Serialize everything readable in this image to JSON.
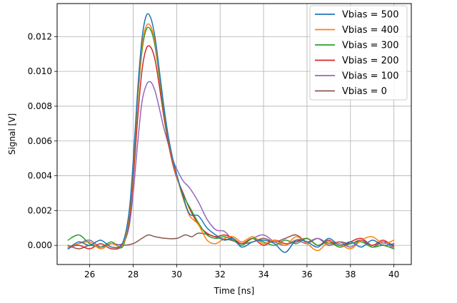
{
  "chart_data": {
    "type": "line",
    "title": "",
    "xlabel": "Time [ns]",
    "ylabel": "Signal [V]",
    "xlim": [
      24.5,
      40.8
    ],
    "ylim": [
      -0.0011,
      0.0139
    ],
    "xticks": [
      26,
      28,
      30,
      32,
      34,
      36,
      38,
      40
    ],
    "xtick_labels": [
      "26",
      "28",
      "30",
      "32",
      "34",
      "36",
      "38",
      "40"
    ],
    "yticks": [
      0.0,
      0.002,
      0.004,
      0.006,
      0.008,
      0.01,
      0.012
    ],
    "ytick_labels": [
      "0.000",
      "0.002",
      "0.004",
      "0.006",
      "0.008",
      "0.010",
      "0.012"
    ],
    "grid": true,
    "legend_position": "top-right",
    "series": [
      {
        "name": "Vbias = 500",
        "color": "#1f77b4",
        "x": [
          25.0,
          25.5,
          26.0,
          26.5,
          27.0,
          27.5,
          27.8,
          28.0,
          28.2,
          28.4,
          28.6,
          28.8,
          29.0,
          29.2,
          29.4,
          29.6,
          29.8,
          30.0,
          30.3,
          30.6,
          31.0,
          31.4,
          31.8,
          32.2,
          32.6,
          33.0,
          33.5,
          34.0,
          34.5,
          35.0,
          35.5,
          36.0,
          36.5,
          37.0,
          37.5,
          38.0,
          38.5,
          39.0,
          39.5,
          40.0
        ],
        "y": [
          -0.0002,
          0.0002,
          0.0,
          0.0003,
          -0.0001,
          0.0001,
          0.0018,
          0.0048,
          0.0088,
          0.0118,
          0.0132,
          0.0131,
          0.012,
          0.0101,
          0.0081,
          0.0064,
          0.0051,
          0.0041,
          0.0028,
          0.0018,
          0.0017,
          0.001,
          0.0006,
          0.0003,
          0.0004,
          -0.0001,
          0.0002,
          0.0003,
          0.0001,
          -0.0004,
          0.0003,
          0.0002,
          -0.0001,
          0.0004,
          0.0,
          0.0002,
          -0.0001,
          0.0003,
          0.0,
          0.0001
        ]
      },
      {
        "name": "Vbias = 400",
        "color": "#ff7f0e",
        "x": [
          25.0,
          25.5,
          26.0,
          26.5,
          27.0,
          27.5,
          27.8,
          28.0,
          28.2,
          28.4,
          28.6,
          28.8,
          29.0,
          29.2,
          29.4,
          29.6,
          29.8,
          30.0,
          30.3,
          30.6,
          31.0,
          31.4,
          31.8,
          32.2,
          32.6,
          33.0,
          33.5,
          34.0,
          34.5,
          35.0,
          35.5,
          36.0,
          36.5,
          37.0,
          37.5,
          38.0,
          38.5,
          39.0,
          39.5,
          40.0
        ],
        "y": [
          -0.0001,
          0.0001,
          0.0002,
          -0.0002,
          0.0001,
          0.0,
          0.0016,
          0.0045,
          0.0084,
          0.0114,
          0.0126,
          0.0126,
          0.0117,
          0.0099,
          0.008,
          0.0063,
          0.005,
          0.004,
          0.0027,
          0.0017,
          0.0012,
          0.0003,
          0.0001,
          0.0004,
          0.0005,
          0.0002,
          0.0005,
          0.0001,
          0.0003,
          0.0,
          0.0005,
          0.0001,
          -0.0003,
          0.0002,
          0.0001,
          -0.0002,
          0.0003,
          0.0005,
          0.0001,
          0.0003
        ]
      },
      {
        "name": "Vbias = 300",
        "color": "#2ca02c",
        "x": [
          25.0,
          25.5,
          26.0,
          26.5,
          27.0,
          27.5,
          27.8,
          28.0,
          28.2,
          28.4,
          28.6,
          28.8,
          29.0,
          29.2,
          29.4,
          29.6,
          29.8,
          30.0,
          30.3,
          30.6,
          31.0,
          31.4,
          31.8,
          32.2,
          32.6,
          33.0,
          33.5,
          34.0,
          34.5,
          35.0,
          35.5,
          36.0,
          36.5,
          37.0,
          37.5,
          38.0,
          38.5,
          39.0,
          39.5,
          40.0
        ],
        "y": [
          0.0003,
          0.0006,
          0.0001,
          -0.0001,
          0.0002,
          -0.0001,
          0.0015,
          0.0043,
          0.0082,
          0.0111,
          0.0124,
          0.0124,
          0.0115,
          0.0097,
          0.0078,
          0.0062,
          0.005,
          0.004,
          0.0029,
          0.0022,
          0.0013,
          0.0006,
          0.0004,
          0.0005,
          0.0003,
          0.0,
          0.0004,
          0.0002,
          0.0,
          0.0003,
          0.0001,
          0.0004,
          0.0,
          0.0002,
          -0.0001,
          0.0001,
          0.0002,
          -0.0001,
          0.0,
          -0.0002
        ]
      },
      {
        "name": "Vbias = 200",
        "color": "#d62728",
        "x": [
          25.0,
          25.5,
          26.0,
          26.5,
          27.0,
          27.5,
          27.8,
          28.0,
          28.2,
          28.4,
          28.6,
          28.8,
          29.0,
          29.2,
          29.4,
          29.6,
          29.8,
          30.0,
          30.3,
          30.6,
          31.0,
          31.4,
          31.8,
          32.2,
          32.6,
          33.0,
          33.5,
          34.0,
          34.5,
          35.0,
          35.5,
          36.0,
          36.5,
          37.0,
          37.5,
          38.0,
          38.5,
          39.0,
          39.5,
          40.0
        ],
        "y": [
          -0.0001,
          0.0,
          -0.0002,
          0.0001,
          -0.0002,
          0.0,
          0.0013,
          0.0038,
          0.0072,
          0.01,
          0.0113,
          0.0114,
          0.0107,
          0.0092,
          0.0075,
          0.006,
          0.0048,
          0.0039,
          0.003,
          0.0021,
          0.0012,
          0.0007,
          0.0005,
          0.0006,
          0.0004,
          0.0001,
          0.0004,
          0.0,
          0.0003,
          0.0001,
          0.0002,
          0.0004,
          0.0,
          0.0003,
          -0.0001,
          0.0002,
          0.0004,
          0.0,
          0.0003,
          -0.0001
        ]
      },
      {
        "name": "Vbias = 100",
        "color": "#9467bd",
        "x": [
          25.0,
          25.5,
          26.0,
          26.5,
          27.0,
          27.5,
          27.8,
          28.0,
          28.2,
          28.4,
          28.6,
          28.8,
          29.0,
          29.2,
          29.4,
          29.6,
          29.8,
          30.0,
          30.3,
          30.6,
          31.0,
          31.4,
          31.8,
          32.2,
          32.6,
          33.0,
          33.5,
          34.0,
          34.5,
          35.0,
          35.5,
          36.0,
          36.5,
          37.0,
          37.5,
          38.0,
          38.5,
          39.0,
          39.5,
          40.0
        ],
        "y": [
          -0.0002,
          0.0001,
          0.0003,
          -0.0001,
          0.0001,
          0.0001,
          0.001,
          0.003,
          0.0058,
          0.0082,
          0.0092,
          0.0094,
          0.0089,
          0.0079,
          0.0068,
          0.0059,
          0.005,
          0.0044,
          0.0037,
          0.0033,
          0.0025,
          0.0015,
          0.0009,
          0.0008,
          0.0003,
          0.0001,
          0.0004,
          0.0006,
          0.0002,
          0.0,
          0.0003,
          0.0001,
          0.0004,
          0.0001,
          0.0002,
          -0.0001,
          0.0003,
          0.0,
          0.0002,
          -0.0002
        ]
      },
      {
        "name": "Vbias = 0",
        "color": "#8c564b",
        "x": [
          25.0,
          25.5,
          26.0,
          26.5,
          27.0,
          27.5,
          28.0,
          28.4,
          28.7,
          29.0,
          29.5,
          30.0,
          30.4,
          30.7,
          31.0,
          31.5,
          32.0,
          32.5,
          33.0,
          33.5,
          34.0,
          34.5,
          35.0,
          35.5,
          36.0,
          36.5,
          37.0,
          37.5,
          38.0,
          38.5,
          39.0,
          39.5,
          40.0
        ],
        "y": [
          0.0,
          -0.0002,
          0.0,
          -0.0001,
          0.0001,
          0.0,
          0.0001,
          0.0004,
          0.0006,
          0.0005,
          0.0004,
          0.0004,
          0.0006,
          0.0005,
          0.0007,
          0.0006,
          0.0004,
          0.0003,
          0.0001,
          0.0002,
          0.0004,
          0.0002,
          0.0004,
          0.0006,
          0.0002,
          0.0004,
          0.0,
          0.0002,
          0.0001,
          0.0003,
          -0.0001,
          0.0002,
          0.0
        ]
      }
    ]
  }
}
